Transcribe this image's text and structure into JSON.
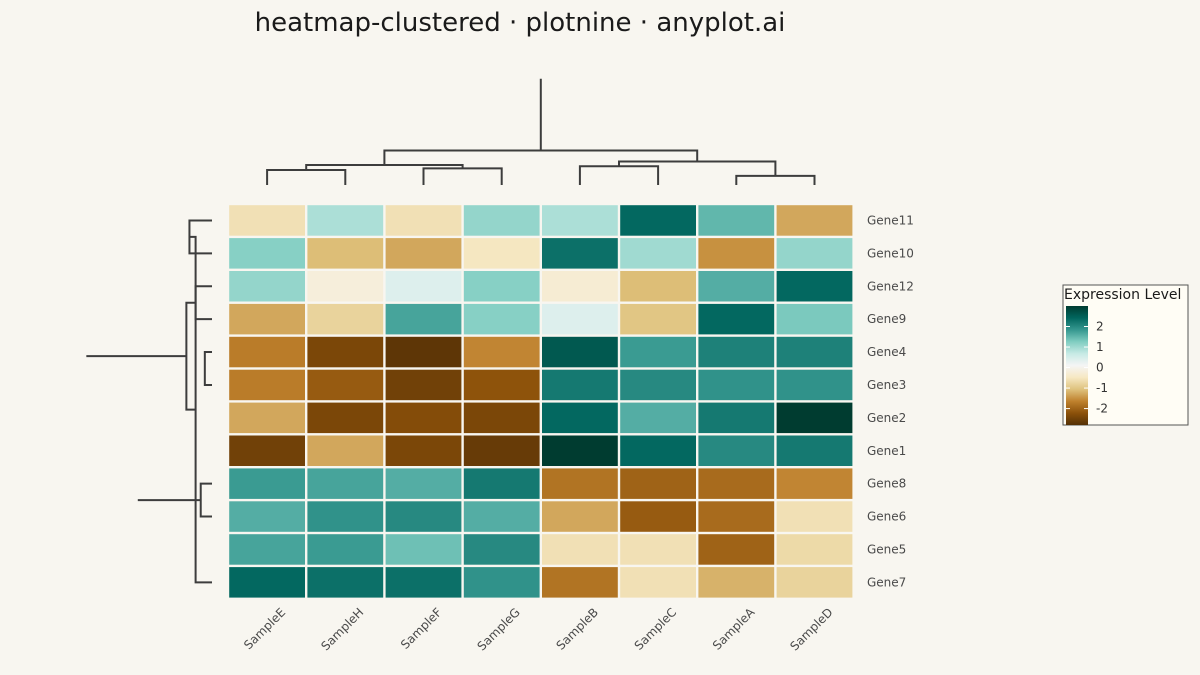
{
  "chart_data": {
    "type": "heatmap",
    "title": "heatmap-clustered · plotnine · anyplot.ai",
    "columns": [
      "SampleE",
      "SampleH",
      "SampleF",
      "SampleG",
      "SampleB",
      "SampleC",
      "SampleA",
      "SampleD"
    ],
    "rows": [
      "Gene11",
      "Gene10",
      "Gene12",
      "Gene9",
      "Gene4",
      "Gene3",
      "Gene2",
      "Gene1",
      "Gene8",
      "Gene6",
      "Gene5",
      "Gene7"
    ],
    "values": [
      [
        -0.6,
        0.9,
        -0.6,
        1.1,
        0.9,
        2.4,
        1.5,
        -1.3
      ],
      [
        1.2,
        -1.1,
        -1.3,
        -0.5,
        2.3,
        1.0,
        -1.5,
        1.1
      ],
      [
        1.1,
        -0.2,
        0.4,
        1.2,
        -0.3,
        -1.1,
        1.6,
        2.4
      ],
      [
        -1.3,
        -0.8,
        1.7,
        1.2,
        0.4,
        -1.0,
        2.4,
        1.3
      ],
      [
        -1.7,
        -2.4,
        -2.7,
        -1.6,
        2.6,
        1.8,
        2.1,
        2.1
      ],
      [
        -1.7,
        -2.1,
        -2.5,
        -2.2,
        2.2,
        2.0,
        1.9,
        1.9
      ],
      [
        -1.3,
        -2.4,
        -2.3,
        -2.4,
        2.4,
        1.6,
        2.2,
        3.0
      ],
      [
        -2.5,
        -1.3,
        -2.4,
        -2.6,
        3.0,
        2.4,
        2.0,
        2.2
      ],
      [
        1.8,
        1.7,
        1.6,
        2.2,
        -1.8,
        -2.0,
        -1.9,
        -1.6
      ],
      [
        1.6,
        1.9,
        2.0,
        1.6,
        -1.3,
        -2.1,
        -1.9,
        -0.6
      ],
      [
        1.7,
        1.8,
        1.4,
        2.0,
        -0.6,
        -0.6,
        -2.0,
        -0.7
      ],
      [
        2.4,
        2.3,
        2.3,
        1.9,
        -1.8,
        -0.6,
        -1.2,
        -0.8
      ]
    ],
    "colorbar": {
      "title": "Expression Level",
      "ticks": [
        2,
        1,
        0,
        -1,
        -2
      ],
      "colors": [
        "#543005",
        "#8C510A",
        "#BF812D",
        "#DFC27D",
        "#F6E8C3",
        "#F5F5F5",
        "#C7EAE5",
        "#80CDC1",
        "#35978F",
        "#01665E",
        "#003C30"
      ],
      "range": [
        -2.8,
        3.0
      ]
    },
    "column_dendrogram": {
      "leaf_order": [
        "SampleE",
        "SampleH",
        "SampleF",
        "SampleG",
        "SampleB",
        "SampleC",
        "SampleA",
        "SampleD"
      ],
      "merges": [
        [
          6,
          7,
          0.39
        ],
        [
          0,
          1,
          0.64
        ],
        [
          2,
          3,
          0.71
        ],
        [
          4,
          5,
          0.8
        ],
        [
          9,
          10,
          0.85
        ],
        [
          8,
          11,
          1.0
        ],
        [
          12,
          13,
          1.47
        ],
        [
          14,
          15,
          4.52
        ]
      ]
    },
    "row_dendrogram": {
      "leaf_order": [
        "Gene11",
        "Gene10",
        "Gene12",
        "Gene9",
        "Gene4",
        "Gene3",
        "Gene2",
        "Gene1",
        "Gene8",
        "Gene6",
        "Gene5",
        "Gene7"
      ],
      "merges": [
        [
          4,
          5,
          0.35
        ],
        [
          13,
          6,
          0.46
        ],
        [
          14,
          7,
          0.55
        ],
        [
          8,
          9,
          0.55
        ],
        [
          16,
          10,
          0.73
        ],
        [
          0,
          1,
          1.1
        ],
        [
          17,
          11,
          0.8
        ],
        [
          2,
          3,
          0.8
        ],
        [
          18,
          19,
          1.25
        ],
        [
          15,
          21,
          3.62
        ],
        [
          20,
          22,
          6.13
        ]
      ]
    }
  }
}
